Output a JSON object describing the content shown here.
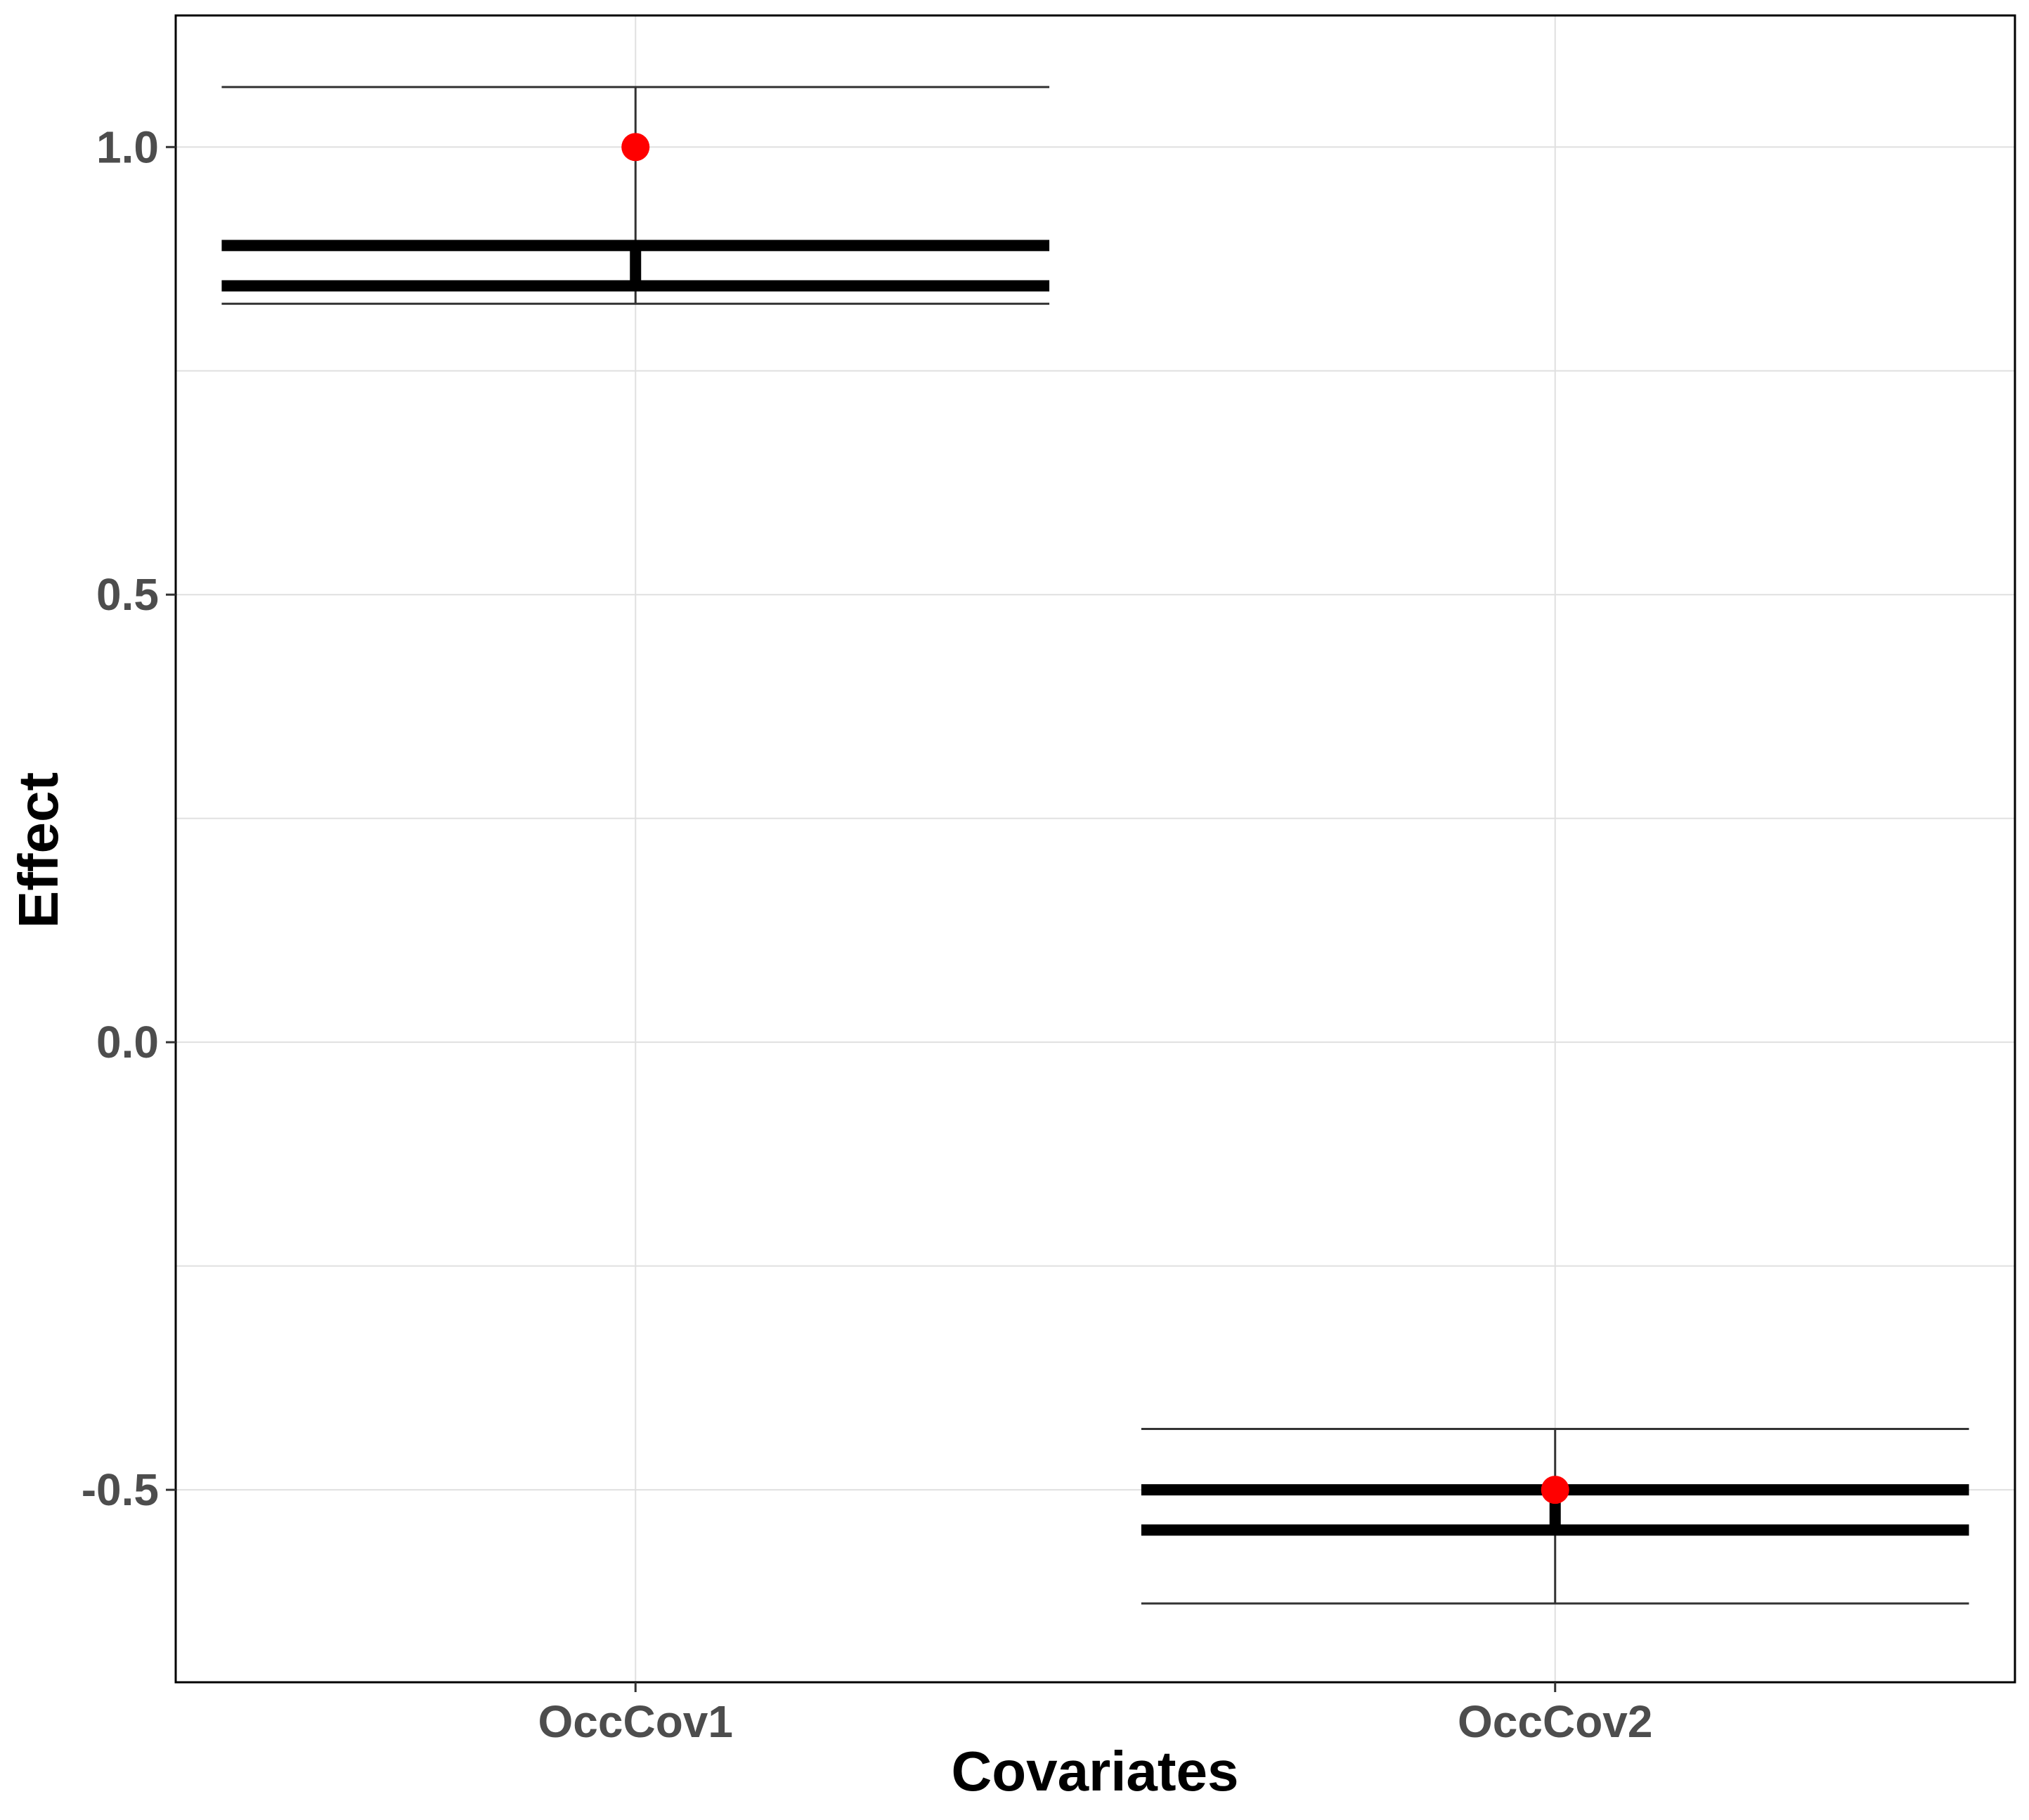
{
  "chart_data": {
    "type": "errorbar",
    "title": "",
    "xlabel": "Covariates",
    "ylabel": "Effect",
    "ylim": [
      -0.715,
      1.147
    ],
    "yticks": [
      -0.5,
      0.0,
      0.5,
      1.0
    ],
    "ytick_labels": [
      "-0.5",
      "0.0",
      "0.5",
      "1.0"
    ],
    "grid": true,
    "legend": "none",
    "categories": [
      "OccCov1",
      "OccCov2"
    ],
    "series": [
      {
        "category": "OccCov1",
        "true_value": 1.0,
        "outer_low": 0.825,
        "outer_high": 1.067,
        "inner_low": 0.845,
        "inner_high": 0.89
      },
      {
        "category": "OccCov2",
        "true_value": -0.5,
        "outer_low": -0.627,
        "outer_high": -0.432,
        "inner_low": -0.545,
        "inner_high": -0.5
      }
    ],
    "colors": {
      "true_point": "#ff0000",
      "interval": "#000000",
      "outer_line": "#333333",
      "grid": "#e0e0e0",
      "panel_border": "#000000"
    }
  }
}
